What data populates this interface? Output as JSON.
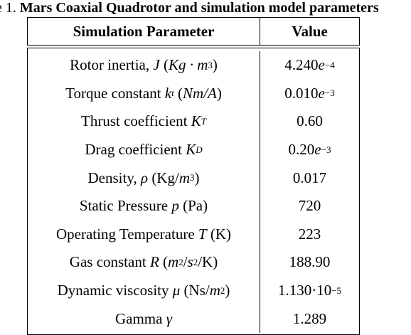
{
  "caption": {
    "number": "e 1.",
    "title": "Mars Coaxial Quadrotor and simulation model parameters"
  },
  "table": {
    "headers": {
      "parameter": "Simulation Parameter",
      "value": "Value"
    },
    "rows": [
      {
        "label": "Rotor inertia,",
        "symbol": "J",
        "unit_pre": "(",
        "unit_sym": "Kg · m",
        "unit_sup": "3",
        "unit_post": ")",
        "value_main": "4.240",
        "value_exp_base": "e",
        "value_exp": "−4"
      },
      {
        "label": "Torque constant",
        "symbol": "k",
        "symbol_sub": "t",
        "unit_pre": "(",
        "unit_sym": "Nm/A",
        "unit_post": ")",
        "value_main": "0.010",
        "value_exp_base": "e",
        "value_exp": "−3"
      },
      {
        "label": "Thrust coefficient",
        "symbol": "K",
        "symbol_sub": "T",
        "value_main": "0.60"
      },
      {
        "label": "Drag coefficient",
        "symbol": "K",
        "symbol_sub": "D",
        "value_main": "0.20",
        "value_exp_base": "e",
        "value_exp": "−3"
      },
      {
        "label": "Density,",
        "symbol": "ρ",
        "unit_pre": "(Kg/",
        "unit_sym": "m",
        "unit_sup": "3",
        "unit_post": ")",
        "value_main": "0.017"
      },
      {
        "label": "Static Pressure",
        "symbol": "p",
        "unit_plain": "(Pa)",
        "value_main": "720"
      },
      {
        "label": "Operating Temperature",
        "symbol": "T",
        "unit_plain": "(K)",
        "value_main": "223"
      },
      {
        "label": "Gas constant",
        "symbol": "R",
        "unit_pre": "(",
        "unit_sym": "m",
        "unit_sup": "2",
        "unit_mid": "/",
        "unit_sym2": "s",
        "unit_sup2": "2",
        "unit_post": "/K)",
        "value_main": "188.90"
      },
      {
        "label": "Dynamic viscosity",
        "symbol": "μ",
        "unit_pre": "(Ns/",
        "unit_sym": "m",
        "unit_sup": "2",
        "unit_post": ")",
        "value_main": "1.130·10",
        "value_exp": "−5"
      },
      {
        "label": "Gamma",
        "symbol": "γ",
        "value_main": "1.289"
      }
    ]
  }
}
